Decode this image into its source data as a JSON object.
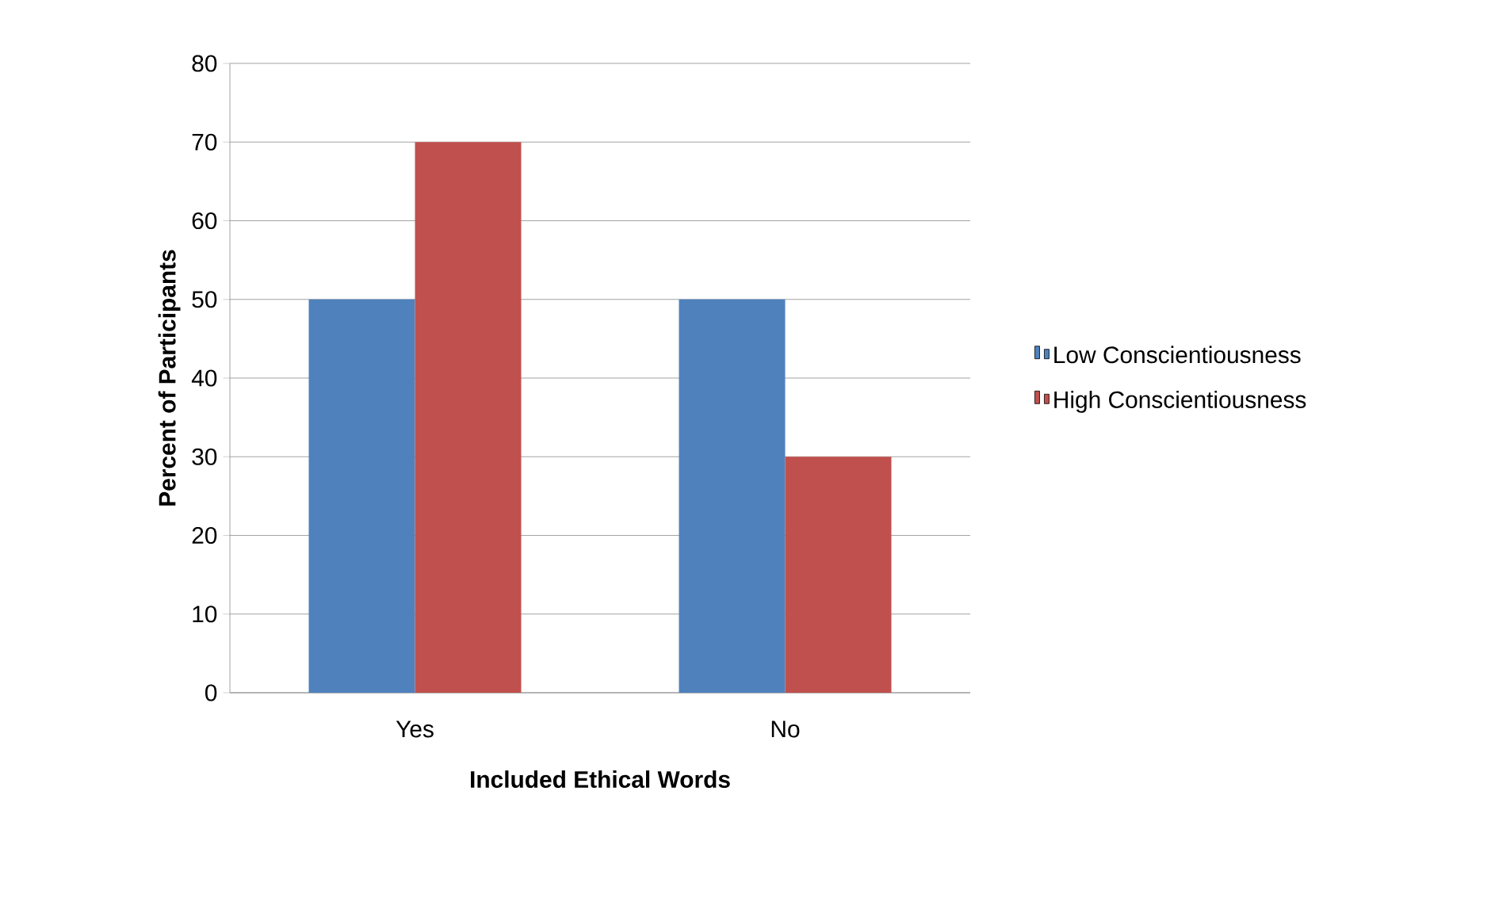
{
  "chart_data": {
    "type": "bar",
    "xlabel": "Included Ethical Words",
    "ylabel": "Percent of Participants",
    "categories": [
      "Yes",
      "No"
    ],
    "series": [
      {
        "name": "Low Conscientiousness",
        "color": "#4f81bd",
        "values": [
          50,
          50
        ]
      },
      {
        "name": "High Conscientiousness",
        "color": "#c0504d",
        "values": [
          70,
          30
        ]
      }
    ],
    "ylim": [
      0,
      80
    ],
    "yticks": [
      0,
      10,
      20,
      30,
      40,
      50,
      60,
      70,
      80
    ],
    "grid": "y",
    "legend": "right"
  }
}
